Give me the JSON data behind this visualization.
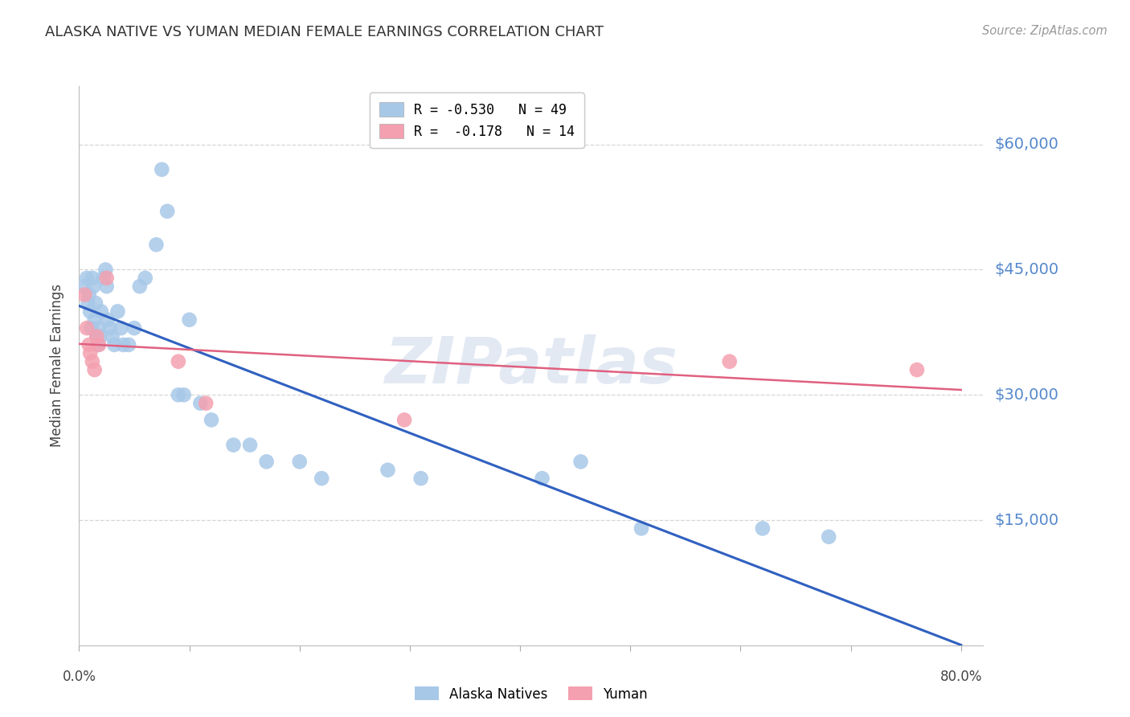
{
  "title": "ALASKA NATIVE VS YUMAN MEDIAN FEMALE EARNINGS CORRELATION CHART",
  "source": "Source: ZipAtlas.com",
  "ylabel": "Median Female Earnings",
  "watermark": "ZIPatlas",
  "legend_r": [
    {
      "label": "R = -0.530   N = 49",
      "color": "#a8c8e8"
    },
    {
      "label": "R =  -0.178   N = 14",
      "color": "#f4a0b0"
    }
  ],
  "legend_labels": [
    "Alaska Natives",
    "Yuman"
  ],
  "ytick_labels": [
    "$60,000",
    "$45,000",
    "$30,000",
    "$15,000"
  ],
  "ytick_values": [
    60000,
    45000,
    30000,
    15000
  ],
  "ylim": [
    0,
    67000
  ],
  "xlim": [
    0.0,
    0.82
  ],
  "alaska_x": [
    0.005,
    0.007,
    0.008,
    0.009,
    0.01,
    0.011,
    0.012,
    0.013,
    0.014,
    0.015,
    0.016,
    0.017,
    0.018,
    0.019,
    0.02,
    0.022,
    0.024,
    0.025,
    0.026,
    0.028,
    0.03,
    0.032,
    0.035,
    0.038,
    0.04,
    0.045,
    0.05,
    0.055,
    0.06,
    0.07,
    0.075,
    0.08,
    0.09,
    0.095,
    0.1,
    0.11,
    0.12,
    0.14,
    0.155,
    0.17,
    0.2,
    0.22,
    0.28,
    0.31,
    0.42,
    0.455,
    0.51,
    0.62,
    0.68
  ],
  "alaska_y": [
    43000,
    44000,
    41000,
    42000,
    40000,
    38000,
    44000,
    43000,
    39000,
    41000,
    37000,
    36000,
    38000,
    37000,
    40000,
    44000,
    45000,
    43000,
    39000,
    38000,
    37000,
    36000,
    40000,
    38000,
    36000,
    36000,
    38000,
    43000,
    44000,
    48000,
    57000,
    52000,
    30000,
    30000,
    39000,
    29000,
    27000,
    24000,
    24000,
    22000,
    22000,
    20000,
    21000,
    20000,
    20000,
    22000,
    14000,
    14000,
    13000
  ],
  "yuman_x": [
    0.005,
    0.007,
    0.009,
    0.01,
    0.012,
    0.014,
    0.016,
    0.018,
    0.025,
    0.09,
    0.115,
    0.295,
    0.59,
    0.76
  ],
  "yuman_y": [
    42000,
    38000,
    36000,
    35000,
    34000,
    33000,
    37000,
    36000,
    44000,
    34000,
    29000,
    27000,
    34000,
    33000
  ],
  "alaska_color": "#a8c8e8",
  "yuman_color": "#f4a0b0",
  "alaska_line_color": "#3060c0",
  "yuman_line_color": "#e06080",
  "background_color": "#ffffff",
  "grid_color": "#cccccc",
  "title_color": "#333333",
  "ytick_color": "#5588cc",
  "xtick_color": "#444444"
}
